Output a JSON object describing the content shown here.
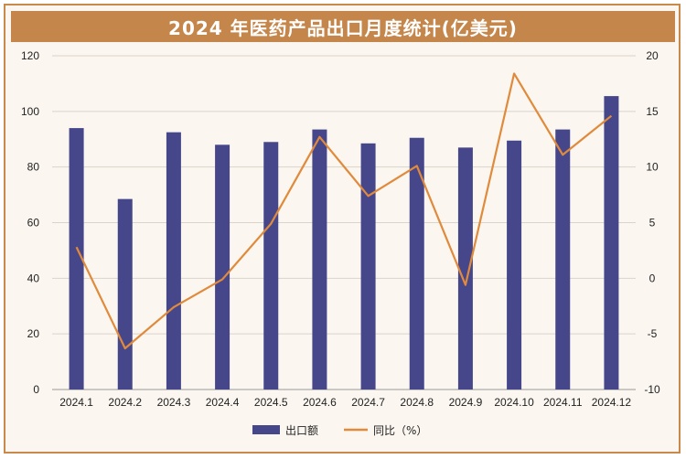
{
  "chart_data": {
    "type": "bar",
    "title": "2024 年医药产品出口月度统计(亿美元)",
    "categories": [
      "2024.1",
      "2024.2",
      "2024.3",
      "2024.4",
      "2024.5",
      "2024.6",
      "2024.7",
      "2024.8",
      "2024.9",
      "2024.10",
      "2024.11",
      "2024.12"
    ],
    "series": [
      {
        "name": "出口额",
        "type": "bar",
        "axis": "left",
        "values": [
          94,
          68.5,
          92.5,
          88,
          89,
          93.5,
          88.5,
          90.5,
          87,
          89.5,
          93.5,
          105.5
        ]
      },
      {
        "name": "同比（%）",
        "type": "line",
        "axis": "right",
        "values": [
          2.8,
          -6.3,
          -2.6,
          -0.1,
          4.9,
          12.7,
          7.4,
          10.1,
          -0.6,
          18.4,
          11.1,
          14.6
        ]
      }
    ],
    "ylim_left": [
      0,
      120
    ],
    "ylim_right": [
      -10,
      20
    ],
    "yticks_left": [
      "0",
      "20",
      "40",
      "60",
      "80",
      "100",
      "120"
    ],
    "yticks_right": [
      "-10",
      "-5",
      "0",
      "5",
      "10",
      "15",
      "20"
    ],
    "grid": true,
    "legend": "bottom-center",
    "colors": {
      "bar": "#46478b",
      "line": "#e08a3c",
      "title_bg": "#c4864a",
      "grid": "#d9d3cb"
    }
  }
}
